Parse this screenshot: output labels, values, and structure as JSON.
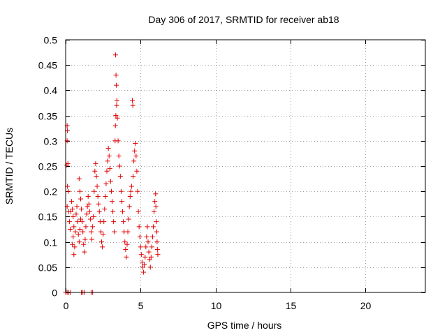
{
  "chart_data": {
    "type": "scatter",
    "title": "Day 306 of 2017, SRMTID for receiver ab18",
    "xlabel": "GPS time / hours",
    "ylabel": "SRMTID / TECUs",
    "xlim": [
      0,
      24
    ],
    "ylim": [
      0,
      0.5
    ],
    "xticks": [
      0,
      5,
      10,
      15,
      20
    ],
    "xtick_labels": [
      "0",
      "5",
      "10",
      "15",
      "20"
    ],
    "yticks": [
      0,
      0.05,
      0.1,
      0.15,
      0.2,
      0.25,
      0.3,
      0.35,
      0.4,
      0.45,
      0.5
    ],
    "ytick_labels": [
      "0",
      "0.05",
      "0.1",
      "0.15",
      "0.2",
      "0.25",
      "0.3",
      "0.35",
      "0.4",
      "0.45",
      "0.5"
    ],
    "grid": true,
    "marker": "+",
    "color": "#e00000",
    "series": [
      {
        "name": "SRMTID",
        "points": [
          [
            0.0,
            0.0
          ],
          [
            0.1,
            0.0
          ],
          [
            0.2,
            0.0
          ],
          [
            0.3,
            0.0
          ],
          [
            1.05,
            0.0
          ],
          [
            1.15,
            0.0
          ],
          [
            1.25,
            0.0
          ],
          [
            1.7,
            0.0
          ],
          [
            1.8,
            0.0
          ],
          [
            0.1,
            0.33
          ],
          [
            0.12,
            0.32
          ],
          [
            0.1,
            0.3
          ],
          [
            0.15,
            0.255
          ],
          [
            0.05,
            0.252
          ],
          [
            0.12,
            0.21
          ],
          [
            0.18,
            0.2
          ],
          [
            0.1,
            0.17
          ],
          [
            0.2,
            0.16
          ],
          [
            0.25,
            0.14
          ],
          [
            0.3,
            0.125
          ],
          [
            0.35,
            0.16
          ],
          [
            0.4,
            0.18
          ],
          [
            0.45,
            0.165
          ],
          [
            0.5,
            0.15
          ],
          [
            0.55,
            0.13
          ],
          [
            0.5,
            0.11
          ],
          [
            0.45,
            0.095
          ],
          [
            0.55,
            0.075
          ],
          [
            0.6,
            0.09
          ],
          [
            0.65,
            0.12
          ],
          [
            0.7,
            0.155
          ],
          [
            0.75,
            0.17
          ],
          [
            0.8,
            0.14
          ],
          [
            0.85,
            0.115
          ],
          [
            0.9,
            0.1
          ],
          [
            0.95,
            0.125
          ],
          [
            1.0,
            0.145
          ],
          [
            0.9,
            0.225
          ],
          [
            0.95,
            0.2
          ],
          [
            1.0,
            0.185
          ],
          [
            1.05,
            0.165
          ],
          [
            1.1,
            0.14
          ],
          [
            1.15,
            0.12
          ],
          [
            1.2,
            0.095
          ],
          [
            1.25,
            0.08
          ],
          [
            1.3,
            0.105
          ],
          [
            1.35,
            0.13
          ],
          [
            1.4,
            0.155
          ],
          [
            1.45,
            0.17
          ],
          [
            1.5,
            0.19
          ],
          [
            1.55,
            0.175
          ],
          [
            1.6,
            0.16
          ],
          [
            1.65,
            0.145
          ],
          [
            1.7,
            0.12
          ],
          [
            1.75,
            0.105
          ],
          [
            1.8,
            0.13
          ],
          [
            1.85,
            0.15
          ],
          [
            1.9,
            0.2
          ],
          [
            1.95,
            0.24
          ],
          [
            2.0,
            0.255
          ],
          [
            2.05,
            0.23
          ],
          [
            2.1,
            0.21
          ],
          [
            2.15,
            0.19
          ],
          [
            2.2,
            0.175
          ],
          [
            2.25,
            0.16
          ],
          [
            2.3,
            0.14
          ],
          [
            2.35,
            0.12
          ],
          [
            2.4,
            0.1
          ],
          [
            2.45,
            0.09
          ],
          [
            2.5,
            0.115
          ],
          [
            2.55,
            0.14
          ],
          [
            2.6,
            0.165
          ],
          [
            2.65,
            0.19
          ],
          [
            2.7,
            0.215
          ],
          [
            2.75,
            0.24
          ],
          [
            2.8,
            0.26
          ],
          [
            2.85,
            0.285
          ],
          [
            2.9,
            0.27
          ],
          [
            2.95,
            0.245
          ],
          [
            3.0,
            0.22
          ],
          [
            3.05,
            0.2
          ],
          [
            3.1,
            0.18
          ],
          [
            3.15,
            0.16
          ],
          [
            3.2,
            0.14
          ],
          [
            3.25,
            0.12
          ],
          [
            3.3,
            0.3
          ],
          [
            3.32,
            0.33
          ],
          [
            3.35,
            0.35
          ],
          [
            3.4,
            0.37
          ],
          [
            3.42,
            0.38
          ],
          [
            3.38,
            0.41
          ],
          [
            3.36,
            0.43
          ],
          [
            3.33,
            0.47
          ],
          [
            3.45,
            0.345
          ],
          [
            3.5,
            0.3
          ],
          [
            3.55,
            0.27
          ],
          [
            3.6,
            0.25
          ],
          [
            3.65,
            0.23
          ],
          [
            3.7,
            0.2
          ],
          [
            3.75,
            0.18
          ],
          [
            3.8,
            0.16
          ],
          [
            3.85,
            0.14
          ],
          [
            3.9,
            0.12
          ],
          [
            3.95,
            0.1
          ],
          [
            4.0,
            0.085
          ],
          [
            4.05,
            0.07
          ],
          [
            4.1,
            0.095
          ],
          [
            4.15,
            0.12
          ],
          [
            4.2,
            0.145
          ],
          [
            4.25,
            0.17
          ],
          [
            4.3,
            0.19
          ],
          [
            4.35,
            0.2
          ],
          [
            4.4,
            0.21
          ],
          [
            4.45,
            0.38
          ],
          [
            4.48,
            0.37
          ],
          [
            4.5,
            0.23
          ],
          [
            4.55,
            0.26
          ],
          [
            4.6,
            0.28
          ],
          [
            4.65,
            0.295
          ],
          [
            4.7,
            0.27
          ],
          [
            4.75,
            0.24
          ],
          [
            4.8,
            0.2
          ],
          [
            4.85,
            0.16
          ],
          [
            4.9,
            0.13
          ],
          [
            4.95,
            0.11
          ],
          [
            5.0,
            0.09
          ],
          [
            5.05,
            0.075
          ],
          [
            5.1,
            0.06
          ],
          [
            5.15,
            0.05
          ],
          [
            5.2,
            0.04
          ],
          [
            5.25,
            0.055
          ],
          [
            5.3,
            0.07
          ],
          [
            5.35,
            0.09
          ],
          [
            5.4,
            0.11
          ],
          [
            5.45,
            0.13
          ],
          [
            5.5,
            0.1
          ],
          [
            5.55,
            0.08
          ],
          [
            5.6,
            0.065
          ],
          [
            5.65,
            0.05
          ],
          [
            5.7,
            0.07
          ],
          [
            5.75,
            0.09
          ],
          [
            5.8,
            0.11
          ],
          [
            5.85,
            0.13
          ],
          [
            5.9,
            0.16
          ],
          [
            5.95,
            0.18
          ],
          [
            6.0,
            0.195
          ],
          [
            6.02,
            0.17
          ],
          [
            6.05,
            0.14
          ],
          [
            6.08,
            0.12
          ],
          [
            6.1,
            0.1
          ],
          [
            6.12,
            0.085
          ],
          [
            6.15,
            0.075
          ]
        ]
      }
    ]
  }
}
